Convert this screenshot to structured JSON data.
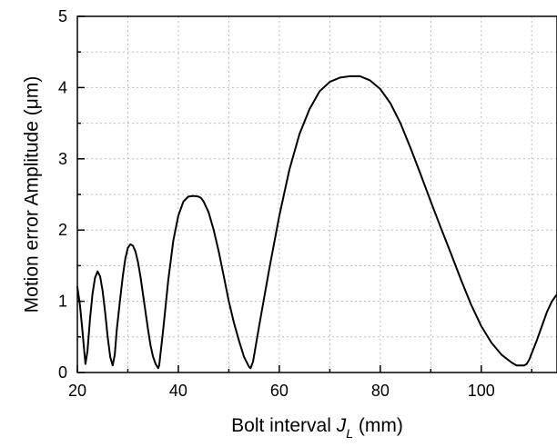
{
  "chart_data": {
    "type": "line",
    "title": "",
    "xlabel": "Bolt interval J_L (mm)",
    "xlabel_parts": {
      "prefix": "Bolt interval ",
      "var": "J",
      "sub": "L",
      "suffix": " (mm)"
    },
    "ylabel": "Motion error Amplitude (μm)",
    "xlim": [
      20,
      115
    ],
    "ylim": [
      0,
      5
    ],
    "x_ticks": [
      20,
      40,
      60,
      80,
      100
    ],
    "x_tick_labels": [
      "20",
      "40",
      "60",
      "80",
      "100"
    ],
    "y_ticks": [
      0,
      1,
      2,
      3,
      4,
      5
    ],
    "y_tick_labels": [
      "0",
      "1",
      "2",
      "3",
      "4",
      "5"
    ],
    "grid": true,
    "line_color": "#000000",
    "series": [
      {
        "x": [
          20,
          20.5,
          21,
          21.3,
          21.6,
          22,
          22.5,
          23,
          23.5,
          24,
          24.5,
          25,
          25.5,
          26,
          26.5,
          27,
          27.4,
          27.8,
          28.5,
          29,
          29.5,
          30,
          30.5,
          31,
          31.5,
          32,
          32.5,
          33,
          33.5,
          34,
          34.5,
          35,
          35.5,
          36,
          36.2,
          36.6,
          37,
          37.5,
          38,
          39,
          40,
          41,
          42,
          43,
          44,
          44.5,
          45,
          46,
          47,
          48,
          49,
          50,
          51,
          52,
          53,
          54,
          54.3,
          54.8,
          56,
          58,
          60,
          62,
          64,
          66,
          68,
          70,
          72,
          74,
          76,
          78,
          80,
          82,
          84,
          86,
          88,
          90,
          92,
          94,
          96,
          98,
          100,
          102,
          104,
          106,
          107,
          108,
          108.5,
          109,
          109.5,
          110,
          111,
          112,
          113,
          114,
          115
        ],
        "y": [
          1.2,
          0.95,
          0.6,
          0.35,
          0.12,
          0.3,
          0.75,
          1.1,
          1.33,
          1.42,
          1.35,
          1.15,
          0.85,
          0.5,
          0.22,
          0.1,
          0.25,
          0.6,
          1.05,
          1.35,
          1.6,
          1.75,
          1.8,
          1.78,
          1.7,
          1.55,
          1.35,
          1.1,
          0.85,
          0.6,
          0.38,
          0.22,
          0.12,
          0.06,
          0.1,
          0.35,
          0.6,
          0.95,
          1.3,
          1.85,
          2.2,
          2.4,
          2.47,
          2.48,
          2.47,
          2.45,
          2.4,
          2.25,
          2.0,
          1.7,
          1.35,
          1.0,
          0.7,
          0.45,
          0.22,
          0.08,
          0.06,
          0.15,
          0.65,
          1.45,
          2.2,
          2.85,
          3.35,
          3.7,
          3.95,
          4.08,
          4.14,
          4.16,
          4.16,
          4.1,
          3.98,
          3.78,
          3.5,
          3.15,
          2.78,
          2.4,
          2.03,
          1.67,
          1.3,
          0.95,
          0.65,
          0.42,
          0.25,
          0.14,
          0.1,
          0.1,
          0.1,
          0.12,
          0.18,
          0.27,
          0.45,
          0.65,
          0.85,
          1.0,
          1.1
        ]
      }
    ]
  }
}
